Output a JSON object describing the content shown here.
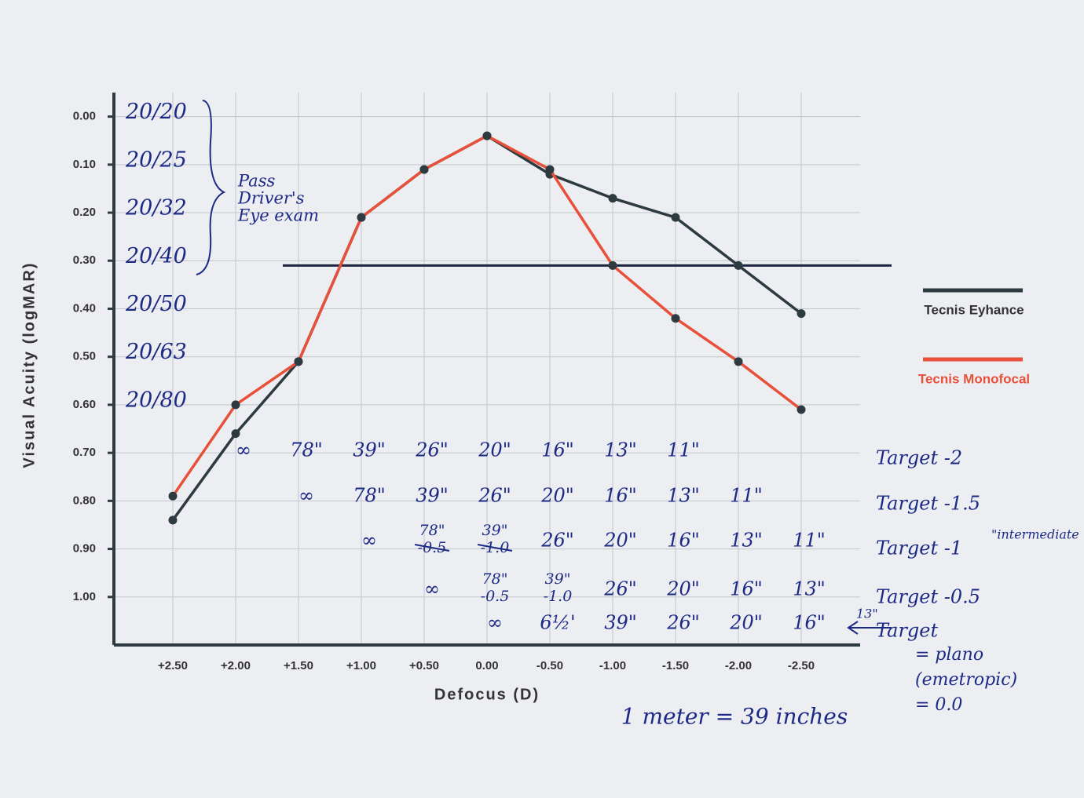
{
  "chart_data": {
    "type": "line",
    "x_label": "Defocus (D)",
    "y_label": "Visual Acuity (logMAR)",
    "categories": [
      "+2.50",
      "+2.00",
      "+1.50",
      "+1.00",
      "+0.50",
      "0.00",
      "-0.50",
      "-1.00",
      "-1.50",
      "-2.00",
      "-2.50"
    ],
    "series": [
      {
        "name": "Tecnis Eyhance",
        "color": "#2d3a40",
        "values": [
          0.84,
          0.66,
          0.51,
          0.21,
          0.11,
          0.04,
          0.12,
          0.17,
          0.21,
          0.31,
          0.41
        ]
      },
      {
        "name": "Tecnis Monofocal",
        "color": "#e8503a",
        "values": [
          0.79,
          0.6,
          0.51,
          0.21,
          0.11,
          0.04,
          0.11,
          0.31,
          0.42,
          0.51,
          0.61
        ]
      }
    ],
    "ylim": [
      1.1,
      -0.05
    ],
    "yticks": [
      {
        "value": 0,
        "label": "0.00"
      },
      {
        "value": 0.1,
        "label": "0.10"
      },
      {
        "value": 0.2,
        "label": "0.20"
      },
      {
        "value": 0.3,
        "label": "0.30"
      },
      {
        "value": 0.4,
        "label": "0.40"
      },
      {
        "value": 0.5,
        "label": "0.50"
      },
      {
        "value": 0.6,
        "label": "0.60"
      },
      {
        "value": 0.7,
        "label": "0.70"
      },
      {
        "value": 0.8,
        "label": "0.80"
      },
      {
        "value": 0.9,
        "label": "0.90"
      },
      {
        "value": 1,
        "label": "1.00"
      }
    ],
    "grid": true,
    "threshold": 0.31,
    "snellen": [
      "20/20",
      "20/25",
      "20/32",
      "20/40",
      "20/50",
      "20/63",
      "20/80"
    ],
    "bracket_note": [
      "Pass",
      "Driver's",
      "Eye exam"
    ],
    "distance_rows": [
      {
        "label": "Target -2",
        "cells": [
          null,
          "∞",
          "78\"",
          "39\"",
          "26\"",
          "20\"",
          "16\"",
          "13\"",
          "11\"",
          null,
          null
        ]
      },
      {
        "label": "Target -1.5",
        "cells": [
          null,
          null,
          "∞",
          "78\"",
          "39\"",
          "26\"",
          "20\"",
          "16\"",
          "13\"",
          "11\"",
          null
        ]
      },
      {
        "label": "Target -1",
        "note": "\"intermediate",
        "cells": [
          null,
          null,
          null,
          "∞",
          {
            "lines": [
              "78\"",
              "-0.5"
            ],
            "struck": true
          },
          {
            "lines": [
              "39\"",
              "-1.0"
            ],
            "struck": true
          },
          "26\"",
          "20\"",
          "16\"",
          "13\"",
          "11\""
        ]
      },
      {
        "label": "Target -0.5",
        "cells": [
          null,
          null,
          null,
          null,
          "∞",
          {
            "lines": [
              "78\"",
              "-0.5"
            ],
            "struck": false
          },
          {
            "lines": [
              "39\"",
              "-1.0"
            ],
            "struck": false
          },
          "26\"",
          "20\"",
          "16\"",
          "13\""
        ]
      },
      {
        "label": "Target",
        "note_lines": [
          "= plano",
          "(emetropic)",
          "= 0.0"
        ],
        "arrow_note": "13\"",
        "cells": [
          null,
          null,
          null,
          null,
          null,
          "∞",
          "6½'",
          "39\"",
          "26\"",
          "20\"",
          "16\""
        ]
      }
    ],
    "footnote": "1 meter = 39 inches"
  }
}
